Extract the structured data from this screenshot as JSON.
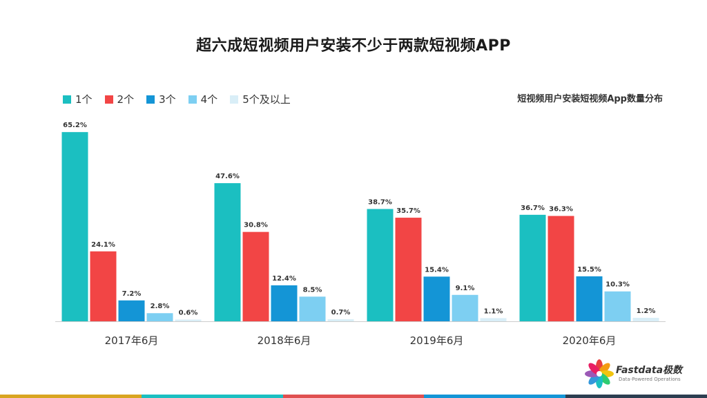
{
  "chart_data": {
    "type": "bar",
    "title": "超六成短视频用户安装不少于两款短视频APP",
    "subtitle": "短视频用户安装短视频App数量分布",
    "categories": [
      "2017年6月",
      "2018年6月",
      "2019年6月",
      "2020年6月"
    ],
    "series": [
      {
        "name": "1个",
        "color": "#1bbfc1",
        "values": [
          65.2,
          47.6,
          38.7,
          36.7
        ]
      },
      {
        "name": "2个",
        "color": "#f24545",
        "values": [
          24.1,
          30.8,
          35.7,
          36.3
        ]
      },
      {
        "name": "3个",
        "color": "#1495d6",
        "values": [
          7.2,
          12.4,
          15.4,
          15.5
        ]
      },
      {
        "name": "4个",
        "color": "#7dcff2",
        "values": [
          2.8,
          8.5,
          9.1,
          10.3
        ]
      },
      {
        "name": "5个及以上",
        "color": "#d9eef7",
        "values": [
          0.6,
          0.7,
          1.1,
          1.2
        ]
      }
    ],
    "value_suffix": "%",
    "ylim": [
      0,
      70
    ],
    "legend_position": "top-left",
    "grid": false
  },
  "logo": {
    "name": "Fastdata极数",
    "tagline": "Data-Powered Operations"
  },
  "bottom_bar_colors": [
    "#d9a520",
    "#1bbfc1",
    "#e05050",
    "#1495d6",
    "#2c3e50"
  ]
}
